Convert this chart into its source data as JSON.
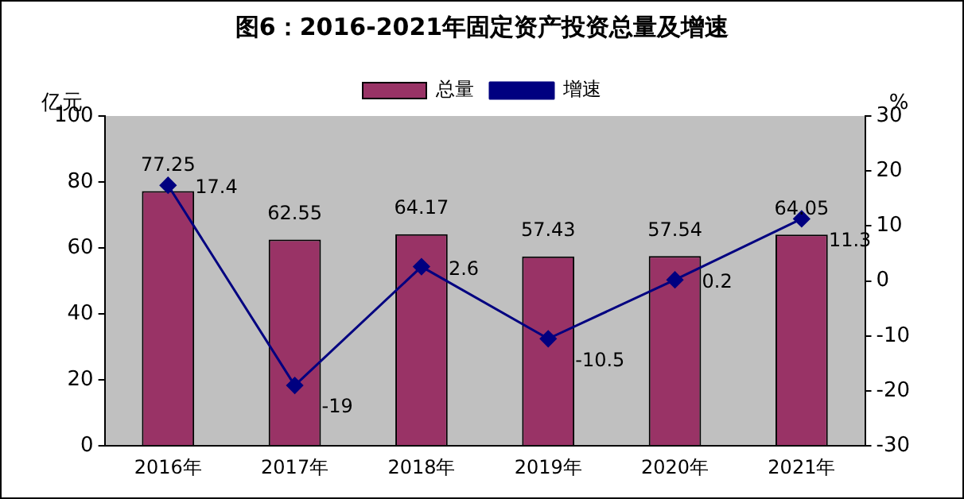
{
  "chart_data": {
    "type": "bar",
    "title": "图6：2016-2021年固定资产投资总量及增速",
    "ylabel": "亿元",
    "y2label": "%",
    "categories": [
      "2016年",
      "2017年",
      "2018年",
      "2019年",
      "2020年",
      "2021年"
    ],
    "series": [
      {
        "name": "总量",
        "color": "#993366",
        "values": [
          77.25,
          62.55,
          64.17,
          57.43,
          57.54,
          64.05
        ]
      },
      {
        "name": "增速",
        "type": "line",
        "axis": "y2",
        "color": "#000080",
        "marker": "diamond",
        "values": [
          17.4,
          -19,
          2.6,
          -10.5,
          0.2,
          11.3
        ]
      }
    ],
    "ylim": [
      0,
      100
    ],
    "yticks": [
      0,
      20,
      40,
      60,
      80,
      100
    ],
    "y2lim": [
      -30,
      30
    ],
    "y2ticks": [
      -30,
      -20,
      -10,
      0,
      10,
      20,
      30
    ],
    "data_labels": true,
    "legend": "top",
    "grid": false
  }
}
